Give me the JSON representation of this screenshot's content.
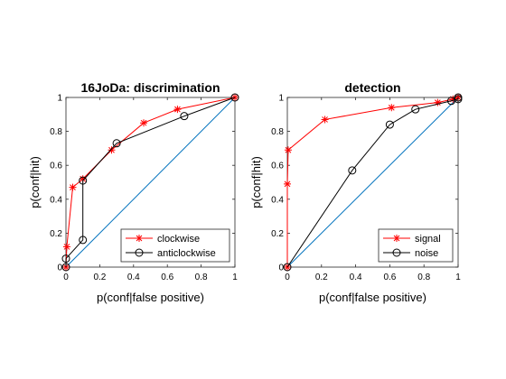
{
  "chart_data": [
    {
      "type": "line",
      "title": "16JoDa: discrimination",
      "xlabel": "p(conf|false positive)",
      "ylabel": "p(conf|hit)",
      "xlim": [
        0,
        1
      ],
      "ylim": [
        0,
        1
      ],
      "xticks": [
        "0",
        "0.2",
        "0.4",
        "0.6",
        "0.8",
        "1"
      ],
      "yticks": [
        "0",
        "0.2",
        "0.4",
        "0.6",
        "0.8",
        "1"
      ],
      "legend_position": "bottom-right",
      "grid": false,
      "diagonal": {
        "x": [
          0,
          1
        ],
        "y": [
          0,
          1
        ],
        "color": "#0072BD"
      },
      "series": [
        {
          "name": "clockwise",
          "marker": "star",
          "color": "#ff0000",
          "x": [
            0,
            0.005,
            0.04,
            0.1,
            0.27,
            0.46,
            0.66,
            1
          ],
          "y": [
            0,
            0.12,
            0.47,
            0.52,
            0.69,
            0.85,
            0.93,
            1
          ]
        },
        {
          "name": "anticlockwise",
          "marker": "circle",
          "color": "#000000",
          "x": [
            0,
            0,
            0.1,
            0.1,
            0.3,
            0.7,
            1
          ],
          "y": [
            0,
            0.05,
            0.16,
            0.51,
            0.73,
            0.89,
            1
          ]
        }
      ]
    },
    {
      "type": "line",
      "title": "detection",
      "xlabel": "p(conf|false positive)",
      "ylabel": "p(conf|hit)",
      "xlim": [
        0,
        1
      ],
      "ylim": [
        0,
        1
      ],
      "xticks": [
        "0",
        "0.2",
        "0.4",
        "0.6",
        "0.8",
        "1"
      ],
      "yticks": [
        "0",
        "0.2",
        "0.4",
        "0.6",
        "0.8",
        "1"
      ],
      "legend_position": "bottom-right",
      "grid": false,
      "diagonal": {
        "x": [
          0,
          1
        ],
        "y": [
          0,
          1
        ],
        "color": "#0072BD"
      },
      "series": [
        {
          "name": "signal",
          "marker": "star",
          "color": "#ff0000",
          "x": [
            0,
            0,
            0.005,
            0.22,
            0.61,
            0.88,
            0.97,
            1
          ],
          "y": [
            0,
            0.49,
            0.69,
            0.87,
            0.94,
            0.97,
            0.99,
            1
          ]
        },
        {
          "name": "noise",
          "marker": "circle",
          "color": "#000000",
          "x": [
            0,
            0.38,
            0.6,
            0.75,
            0.96,
            1,
            1
          ],
          "y": [
            0,
            0.57,
            0.84,
            0.93,
            0.98,
            0.99,
            1
          ]
        }
      ]
    }
  ]
}
